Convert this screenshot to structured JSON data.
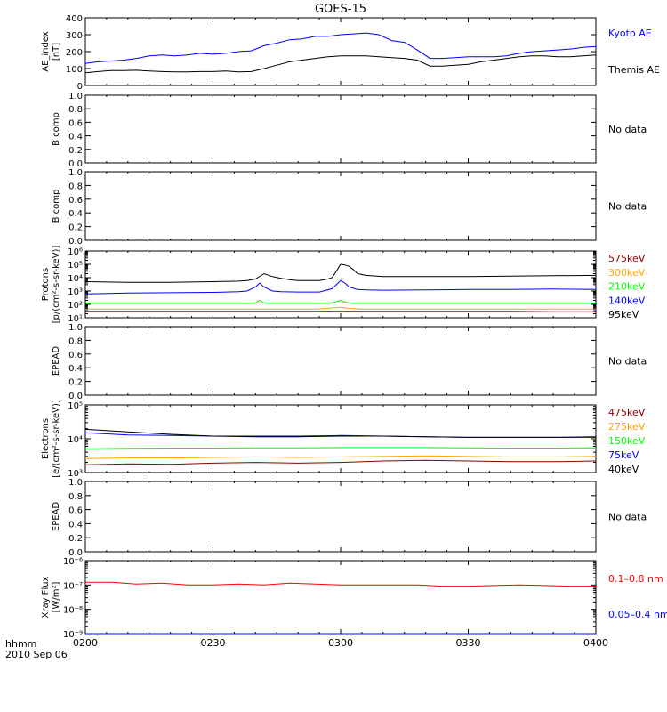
{
  "chart_data": {
    "title": "GOES-15",
    "footer": {
      "time_label": "hhmm",
      "date_label": "2010 Sep 06"
    },
    "x_ticks": [
      "0200",
      "0230",
      "0300",
      "0330",
      "0400"
    ],
    "x_range_minutes": [
      0,
      120
    ],
    "panels": [
      {
        "id": "ae",
        "type": "line",
        "ylabel": [
          "AE_index",
          "[nT]"
        ],
        "scale": "linear",
        "ylim": [
          0,
          400
        ],
        "ticks": [
          "0",
          "100",
          "200",
          "300",
          "400"
        ],
        "series": [
          {
            "name": "Kyoto AE",
            "color": "#0000ff",
            "x": [
              0,
              3,
              6,
              9,
              12,
              15,
              18,
              21,
              24,
              27,
              30,
              33,
              36,
              39,
              42,
              45,
              48,
              51,
              54,
              57,
              60,
              63,
              66,
              69,
              72,
              75,
              78,
              81,
              84,
              87,
              90,
              93,
              96,
              99,
              102,
              105,
              108,
              111,
              114,
              117,
              120
            ],
            "y": [
              130,
              140,
              145,
              150,
              160,
              175,
              180,
              175,
              180,
              190,
              185,
              190,
              200,
              205,
              235,
              250,
              270,
              275,
              290,
              290,
              300,
              305,
              310,
              300,
              265,
              255,
              210,
              160,
              160,
              165,
              170,
              170,
              170,
              175,
              190,
              200,
              205,
              210,
              215,
              225,
              230
            ]
          },
          {
            "name": "Themis AE",
            "color": "#000000",
            "x": [
              0,
              3,
              6,
              9,
              12,
              15,
              18,
              21,
              24,
              27,
              30,
              33,
              36,
              39,
              42,
              45,
              48,
              51,
              54,
              57,
              60,
              63,
              66,
              69,
              72,
              75,
              78,
              81,
              84,
              87,
              90,
              93,
              96,
              99,
              102,
              105,
              108,
              111,
              114,
              117,
              120
            ],
            "y": [
              75,
              82,
              88,
              88,
              90,
              85,
              82,
              80,
              80,
              82,
              82,
              85,
              80,
              82,
              100,
              120,
              140,
              150,
              160,
              170,
              175,
              175,
              175,
              170,
              165,
              160,
              150,
              115,
              115,
              120,
              125,
              140,
              150,
              160,
              170,
              175,
              175,
              170,
              170,
              175,
              180
            ]
          }
        ]
      },
      {
        "id": "bcomp1",
        "type": "empty",
        "ylabel": [
          "B comp"
        ],
        "scale": "linear",
        "ylim": [
          0,
          1
        ],
        "ticks": [
          "0.0",
          "0.2",
          "0.4",
          "0.6",
          "0.8",
          "1.0"
        ],
        "no_data_text": "No data"
      },
      {
        "id": "bcomp2",
        "type": "empty",
        "ylabel": [
          "B comp"
        ],
        "scale": "linear",
        "ylim": [
          0,
          1
        ],
        "ticks": [
          "0.0",
          "0.2",
          "0.4",
          "0.6",
          "0.8",
          "1.0"
        ],
        "no_data_text": "No data"
      },
      {
        "id": "protons",
        "type": "line",
        "ylabel": [
          "Protons",
          "[p/(cm²-s-sr-keV)]"
        ],
        "scale": "log",
        "ylim_exp": [
          1,
          6
        ],
        "ticks": [
          "10¹",
          "10²",
          "10³",
          "10⁴",
          "10⁵",
          "10⁶"
        ],
        "series": [
          {
            "name": "575keV",
            "color": "#8b0000",
            "x": [
              0,
              10,
              20,
              30,
              40,
              50,
              60,
              70,
              80,
              90,
              100,
              110,
              120
            ],
            "y": [
              30,
              30,
              30,
              30,
              30,
              30,
              30,
              30,
              30,
              30,
              30,
              28,
              28
            ]
          },
          {
            "name": "300keV",
            "color": "#ffa500",
            "x": [
              0,
              10,
              20,
              30,
              40,
              50,
              55,
              58,
              60,
              62,
              65,
              70,
              80,
              90,
              100,
              110,
              120
            ],
            "y": [
              45,
              45,
              45,
              45,
              45,
              45,
              45,
              55,
              60,
              50,
              45,
              45,
              45,
              45,
              45,
              45,
              45
            ]
          },
          {
            "name": "210keV",
            "color": "#00ff00",
            "x": [
              0,
              10,
              20,
              30,
              38,
              40,
              41,
              42,
              44,
              50,
              55,
              58,
              60,
              61,
              62,
              64,
              70,
              80,
              90,
              100,
              110,
              120
            ],
            "y": [
              120,
              120,
              120,
              120,
              120,
              130,
              200,
              130,
              120,
              120,
              120,
              130,
              200,
              150,
              130,
              120,
              120,
              120,
              120,
              120,
              120,
              120
            ]
          },
          {
            "name": "140keV",
            "color": "#0000ff",
            "x": [
              0,
              10,
              20,
              30,
              36,
              38,
              40,
              41,
              42,
              44,
              46,
              50,
              55,
              58,
              60,
              61,
              62,
              64,
              66,
              70,
              80,
              90,
              100,
              110,
              120
            ],
            "y": [
              600,
              700,
              750,
              800,
              900,
              1000,
              2000,
              4000,
              2000,
              1000,
              900,
              850,
              850,
              1500,
              6000,
              4000,
              2000,
              1300,
              1200,
              1150,
              1200,
              1300,
              1300,
              1400,
              1300
            ]
          },
          {
            "name": "95keV",
            "color": "#000000",
            "x": [
              0,
              10,
              20,
              30,
              36,
              38,
              40,
              42,
              44,
              46,
              48,
              50,
              55,
              57,
              58,
              59,
              60,
              61,
              62,
              63,
              64,
              66,
              70,
              80,
              90,
              100,
              110,
              120
            ],
            "y": [
              5000,
              4500,
              4500,
              5000,
              5500,
              6000,
              8000,
              20000,
              12000,
              9000,
              7000,
              6000,
              6000,
              8000,
              10000,
              30000,
              100000,
              90000,
              70000,
              40000,
              20000,
              15000,
              12000,
              12000,
              12000,
              13000,
              14000,
              15000
            ]
          }
        ]
      },
      {
        "id": "epead1",
        "type": "empty",
        "ylabel": [
          "EPEAD"
        ],
        "scale": "linear",
        "ylim": [
          0,
          1
        ],
        "ticks": [
          "0.0",
          "0.2",
          "0.4",
          "0.6",
          "0.8",
          "1.0"
        ],
        "no_data_text": "No data"
      },
      {
        "id": "electrons",
        "type": "line",
        "ylabel": [
          "Electrons",
          "[e/(cm²-s-sr-keV)]"
        ],
        "scale": "log",
        "ylim_exp": [
          3,
          5
        ],
        "ticks": [
          "10³",
          "10⁴",
          "10⁵"
        ],
        "series": [
          {
            "name": "475keV",
            "color": "#8b0000",
            "x": [
              0,
              10,
              20,
              30,
              40,
              50,
              60,
              70,
              80,
              90,
              100,
              110,
              120
            ],
            "y": [
              1700,
              1800,
              1750,
              1900,
              2000,
              1900,
              2000,
              2200,
              2300,
              2200,
              2100,
              2100,
              2200
            ]
          },
          {
            "name": "275keV",
            "color": "#ffa500",
            "x": [
              0,
              10,
              20,
              30,
              40,
              50,
              60,
              70,
              80,
              90,
              100,
              110,
              120
            ],
            "y": [
              2600,
              2700,
              2700,
              2800,
              2900,
              2800,
              2900,
              3000,
              3100,
              3000,
              2900,
              2900,
              3000
            ]
          },
          {
            "name": "150keV",
            "color": "#00ff00",
            "x": [
              0,
              10,
              20,
              30,
              40,
              50,
              60,
              70,
              80,
              90,
              100,
              110,
              120
            ],
            "y": [
              5000,
              5200,
              5300,
              5300,
              5400,
              5400,
              5500,
              5500,
              5500,
              5400,
              5300,
              5300,
              5400
            ]
          },
          {
            "name": "75keV",
            "color": "#0000ff",
            "x": [
              0,
              10,
              20,
              30,
              40,
              50,
              60,
              70,
              80,
              90,
              100,
              110,
              120
            ],
            "y": [
              15000,
              13000,
              12500,
              12000,
              12000,
              12000,
              12500,
              12000,
              11500,
              11000,
              11000,
              11000,
              11000
            ]
          },
          {
            "name": "40keV",
            "color": "#000000",
            "x": [
              0,
              10,
              20,
              30,
              40,
              50,
              60,
              70,
              80,
              90,
              100,
              110,
              120
            ],
            "y": [
              19000,
              16000,
              13500,
              12000,
              11500,
              11500,
              12000,
              12000,
              11500,
              11000,
              11000,
              11000,
              11500
            ]
          }
        ]
      },
      {
        "id": "epead2",
        "type": "empty",
        "ylabel": [
          "EPEAD"
        ],
        "scale": "linear",
        "ylim": [
          0,
          1
        ],
        "ticks": [
          "0.0",
          "0.2",
          "0.4",
          "0.6",
          "0.8",
          "1.0"
        ],
        "no_data_text": "No data"
      },
      {
        "id": "xray",
        "type": "line",
        "ylabel": [
          "Xray Flux",
          "[W/m²]"
        ],
        "scale": "log",
        "ylim_exp": [
          -9,
          -6
        ],
        "ticks": [
          "10⁻⁹",
          "10⁻⁸",
          "10⁻⁷",
          "10⁻⁶"
        ],
        "series": [
          {
            "name": "0.1–0.8 nm",
            "color": "#ff0000",
            "x": [
              0,
              6,
              12,
              18,
              24,
              30,
              36,
              42,
              48,
              54,
              60,
              66,
              72,
              78,
              84,
              90,
              96,
              102,
              108,
              114,
              120
            ],
            "y": [
              1.3e-07,
              1.3e-07,
              1.1e-07,
              1.2e-07,
              1e-07,
              1e-07,
              1.1e-07,
              1e-07,
              1.2e-07,
              1.1e-07,
              1e-07,
              1e-07,
              1e-07,
              1e-07,
              9e-08,
              9e-08,
              9.5e-08,
              1e-07,
              9.5e-08,
              9e-08,
              9e-08
            ]
          },
          {
            "name": "0.05–0.4 nm",
            "color": "#0000ff",
            "x": [
              0,
              10,
              20,
              30,
              40,
              50,
              60,
              70,
              80,
              90,
              100,
              110,
              120
            ],
            "y": [
              1e-09,
              1e-09,
              1e-09,
              1e-09,
              1e-09,
              1e-09,
              1e-09,
              1e-09,
              1e-09,
              1e-09,
              1e-09,
              1e-09,
              1e-09
            ]
          }
        ]
      }
    ]
  }
}
